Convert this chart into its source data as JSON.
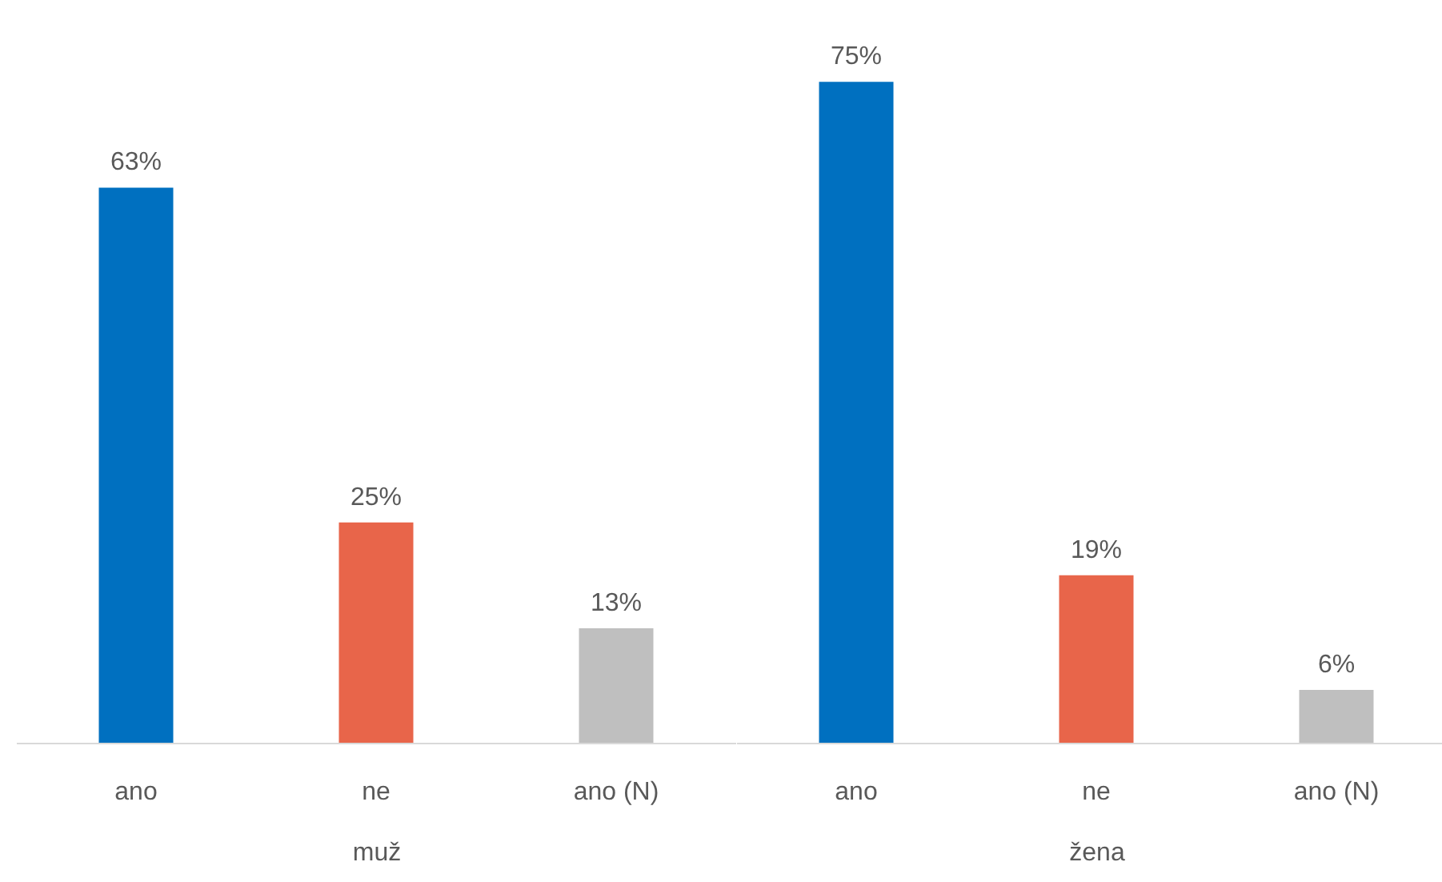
{
  "chart_data": [
    {
      "type": "bar",
      "xlabel": "muž",
      "categories": [
        "ano",
        "ne",
        "ano (N)"
      ],
      "values": [
        63,
        25,
        13
      ],
      "colors": [
        "#0070c0",
        "#e8654a",
        "#bfbfbf"
      ],
      "value_labels": [
        "63%",
        "25%",
        "13%"
      ],
      "tick_labels": "x"
    },
    {
      "type": "bar",
      "xlabel": "žena",
      "categories": [
        "ano",
        "ne",
        "ano (N)"
      ],
      "values": [
        75,
        19,
        6
      ],
      "colors": [
        "#0070c0",
        "#e8654a",
        "#bfbfbf"
      ],
      "value_labels": [
        "75%",
        "19%",
        "6%"
      ],
      "tick_labels": "x"
    }
  ]
}
